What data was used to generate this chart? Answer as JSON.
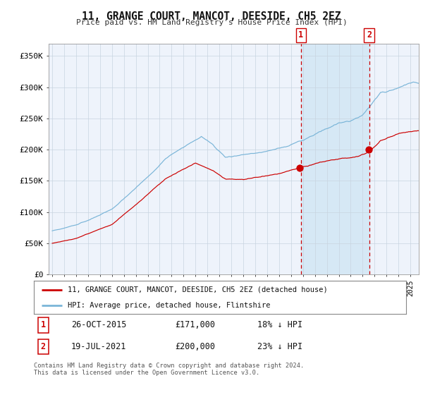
{
  "title": "11, GRANGE COURT, MANCOT, DEESIDE, CH5 2EZ",
  "subtitle": "Price paid vs. HM Land Registry's House Price Index (HPI)",
  "ylabel_ticks": [
    "£0",
    "£50K",
    "£100K",
    "£150K",
    "£200K",
    "£250K",
    "£300K",
    "£350K"
  ],
  "ylim": [
    0,
    370000
  ],
  "hpi_color": "#7ab5d8",
  "price_color": "#cc0000",
  "vline_color": "#cc0000",
  "point1_year": 2015.83,
  "point1_value": 171000,
  "point1_label": "26-OCT-2015",
  "point1_price": "£171,000",
  "point1_pct": "18% ↓ HPI",
  "point2_year": 2021.54,
  "point2_value": 200000,
  "point2_label": "19-JUL-2021",
  "point2_price": "£200,000",
  "point2_pct": "23% ↓ HPI",
  "legend_label1": "11, GRANGE COURT, MANCOT, DEESIDE, CH5 2EZ (detached house)",
  "legend_label2": "HPI: Average price, detached house, Flintshire",
  "footer": "Contains HM Land Registry data © Crown copyright and database right 2024.\nThis data is licensed under the Open Government Licence v3.0.",
  "background_color": "#ffffff",
  "plot_bg_color": "#eef3fb",
  "shade_color": "#d6e8f5",
  "grid_color": "#c8d4e0",
  "start_year": 1995,
  "end_year": 2025,
  "months": 372
}
